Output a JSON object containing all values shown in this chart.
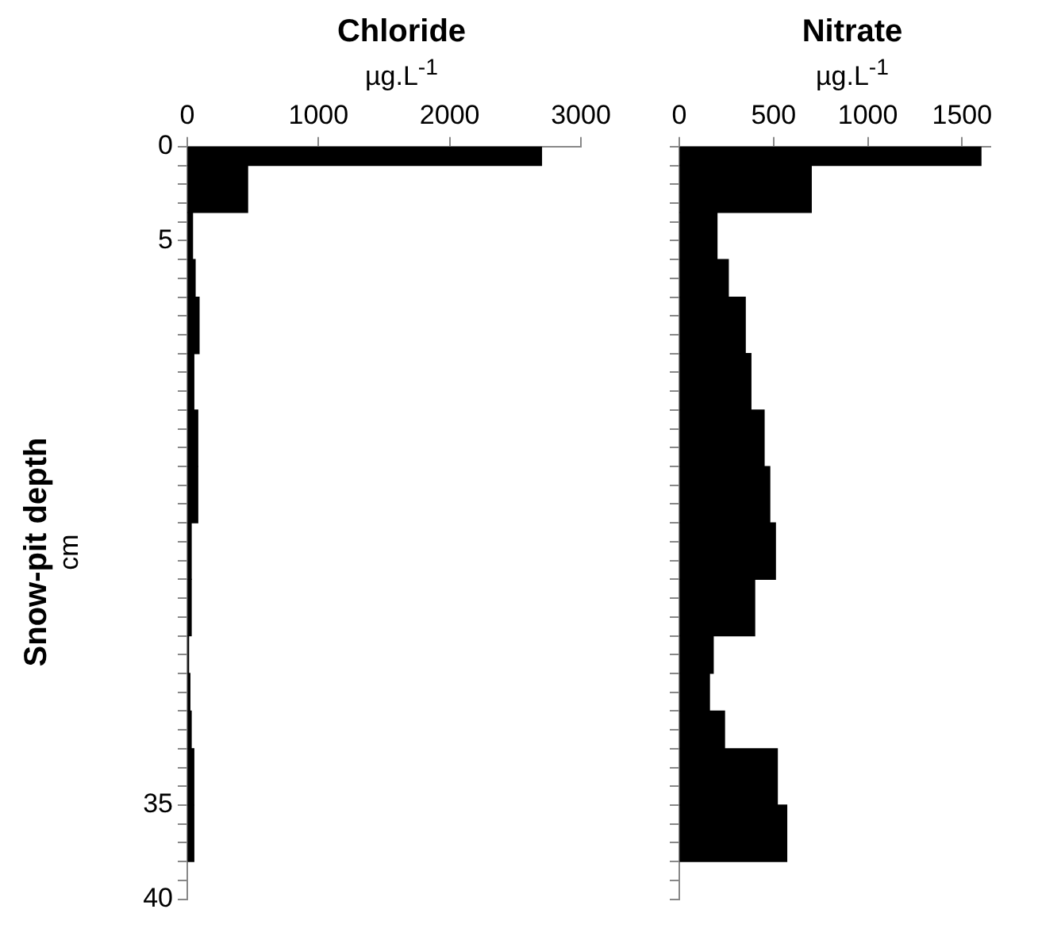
{
  "chart_data": [
    {
      "type": "histogram",
      "orientation": "horizontal",
      "title": "Chloride",
      "xlabel": "µg.L$^{-1}$",
      "ylabel": "Snow-pit depth\ncm",
      "bins": [
        0,
        1,
        3.5,
        6,
        8,
        11,
        14,
        17,
        20,
        23,
        26,
        28,
        30,
        32,
        35,
        38
      ],
      "values": [
        2700,
        460,
        40,
        60,
        90,
        50,
        80,
        80,
        30,
        30,
        10,
        20,
        30,
        50,
        50
      ],
      "color": "#000000",
      "xlim": [
        0,
        3000
      ],
      "xticks": [
        0,
        1000,
        2000,
        3000
      ],
      "ylim": [
        40,
        0
      ],
      "yticks": [
        0,
        {
          "value": 1,
          "label": null
        },
        {
          "value": 2,
          "label": null
        },
        {
          "value": 3,
          "label": null
        },
        {
          "value": 4,
          "label": null
        },
        5,
        {
          "value": 6,
          "label": null
        },
        {
          "value": 7,
          "label": null
        },
        {
          "value": 8,
          "label": null
        },
        {
          "value": 9,
          "label": null
        },
        {
          "value": 10,
          "label": null
        },
        {
          "value": 11,
          "label": null
        },
        {
          "value": 12,
          "label": null
        },
        {
          "value": 13,
          "label": null
        },
        {
          "value": 14,
          "label": null
        },
        {
          "value": 15,
          "label": null
        },
        {
          "value": 16,
          "label": null
        },
        {
          "value": 17,
          "label": null
        },
        {
          "value": 18,
          "label": null
        },
        {
          "value": 19,
          "label": null
        },
        {
          "value": 20,
          "label": null
        },
        {
          "value": 21,
          "label": null
        },
        {
          "value": 22,
          "label": null
        },
        {
          "value": 23,
          "label": null
        },
        {
          "value": 24,
          "label": null
        },
        {
          "value": 25,
          "label": null
        },
        {
          "value": 26,
          "label": null
        },
        {
          "value": 27,
          "label": null
        },
        {
          "value": 28,
          "label": null
        },
        {
          "value": 29,
          "label": null
        },
        {
          "value": 30,
          "label": null
        },
        {
          "value": 31,
          "label": null
        },
        {
          "value": 32,
          "label": null
        },
        {
          "value": 33,
          "label": null
        },
        {
          "value": 34,
          "label": null
        },
        35,
        {
          "value": 36,
          "label": null
        },
        {
          "value": 37,
          "label": null
        },
        {
          "value": 38,
          "label": null
        },
        {
          "value": 39,
          "label": null
        },
        40
      ]
    },
    {
      "type": "histogram",
      "orientation": "horizontal",
      "title": "Nitrate",
      "xlabel": "µg.L$^{-1}$",
      "tick_labels": "x",
      "bins": [
        0,
        1,
        3.5,
        6,
        8,
        11,
        14,
        17,
        20,
        23,
        26,
        28,
        30,
        32,
        35,
        38
      ],
      "values": [
        1600,
        700,
        200,
        260,
        350,
        380,
        450,
        480,
        510,
        400,
        180,
        160,
        240,
        520,
        570
      ],
      "color": "#000000",
      "xlim": [
        0,
        1650
      ],
      "xticks": [
        0,
        500,
        1000,
        1500
      ],
      "ylim": [
        40,
        0
      ],
      "yticks": [
        0,
        {
          "value": 1,
          "label": null
        },
        {
          "value": 2,
          "label": null
        },
        {
          "value": 3,
          "label": null
        },
        {
          "value": 4,
          "label": null
        },
        5,
        {
          "value": 6,
          "label": null
        },
        {
          "value": 7,
          "label": null
        },
        {
          "value": 8,
          "label": null
        },
        {
          "value": 9,
          "label": null
        },
        {
          "value": 10,
          "label": null
        },
        {
          "value": 11,
          "label": null
        },
        {
          "value": 12,
          "label": null
        },
        {
          "value": 13,
          "label": null
        },
        {
          "value": 14,
          "label": null
        },
        {
          "value": 15,
          "label": null
        },
        {
          "value": 16,
          "label": null
        },
        {
          "value": 17,
          "label": null
        },
        {
          "value": 18,
          "label": null
        },
        {
          "value": 19,
          "label": null
        },
        {
          "value": 20,
          "label": null
        },
        {
          "value": 21,
          "label": null
        },
        {
          "value": 22,
          "label": null
        },
        {
          "value": 23,
          "label": null
        },
        {
          "value": 24,
          "label": null
        },
        {
          "value": 25,
          "label": null
        },
        {
          "value": 26,
          "label": null
        },
        {
          "value": 27,
          "label": null
        },
        {
          "value": 28,
          "label": null
        },
        {
          "value": 29,
          "label": null
        },
        {
          "value": 30,
          "label": null
        },
        {
          "value": 31,
          "label": null
        },
        {
          "value": 32,
          "label": null
        },
        {
          "value": 33,
          "label": null
        },
        {
          "value": 34,
          "label": null
        },
        35,
        {
          "value": 36,
          "label": null
        },
        {
          "value": 37,
          "label": null
        },
        {
          "value": 38,
          "label": null
        },
        {
          "value": 39,
          "label": null
        },
        40
      ]
    }
  ]
}
